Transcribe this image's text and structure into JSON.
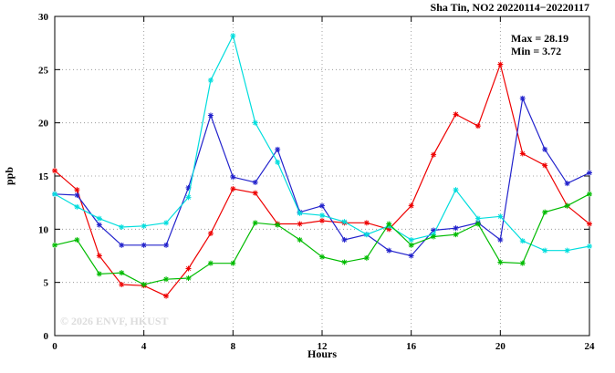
{
  "title": "Sha Tin, NO2 20220114−20220117",
  "annotations": {
    "max_label": "Max = 28.19",
    "min_label": "Min =  3.72"
  },
  "watermark": "© 2026 ENVF, HKUST",
  "chart_data": {
    "type": "line",
    "title": "Sha Tin, NO2 20220114−20220117",
    "xlabel": "Hours",
    "ylabel": "ppb",
    "xlim": [
      0,
      24
    ],
    "ylim": [
      0,
      30
    ],
    "xticks": [
      0,
      4,
      8,
      12,
      16,
      20,
      24
    ],
    "yticks": [
      0,
      5,
      10,
      15,
      20,
      25,
      30
    ],
    "grid": true,
    "legend_position": "none",
    "marker": "asterisk",
    "x": [
      0,
      1,
      2,
      3,
      4,
      5,
      6,
      7,
      8,
      9,
      10,
      11,
      12,
      13,
      14,
      15,
      16,
      17,
      18,
      19,
      20,
      21,
      22,
      23,
      24
    ],
    "series": [
      {
        "name": "series-red",
        "color": "#ee0000",
        "values": [
          15.5,
          13.7,
          7.5,
          4.8,
          4.7,
          3.72,
          6.3,
          9.6,
          13.8,
          13.4,
          10.5,
          10.5,
          10.8,
          10.6,
          10.6,
          10.0,
          12.2,
          17.0,
          20.8,
          19.7,
          25.5,
          17.1,
          16.0,
          12.2,
          10.5
        ]
      },
      {
        "name": "series-blue",
        "color": "#2222cc",
        "values": [
          13.3,
          13.2,
          10.4,
          8.5,
          8.5,
          8.5,
          13.9,
          20.7,
          14.9,
          14.4,
          17.5,
          11.6,
          12.2,
          9.0,
          9.5,
          8.0,
          7.5,
          9.9,
          10.1,
          10.6,
          9.0,
          22.3,
          17.5,
          14.3,
          15.3
        ]
      },
      {
        "name": "series-cyan",
        "color": "#00dddd",
        "values": [
          13.3,
          12.1,
          11.0,
          10.2,
          10.3,
          10.6,
          13.0,
          24.0,
          28.19,
          20.0,
          16.3,
          11.5,
          11.3,
          10.7,
          9.5,
          10.3,
          9.0,
          9.5,
          13.7,
          11.0,
          11.2,
          8.9,
          8.0,
          8.0,
          8.4
        ]
      },
      {
        "name": "series-green",
        "color": "#00bb00",
        "values": [
          8.5,
          9.0,
          5.8,
          5.9,
          4.8,
          5.3,
          5.4,
          6.8,
          6.8,
          10.6,
          10.4,
          9.0,
          7.4,
          6.9,
          7.3,
          10.5,
          8.5,
          9.3,
          9.5,
          10.5,
          6.9,
          6.8,
          11.6,
          12.2,
          13.3
        ]
      }
    ]
  }
}
